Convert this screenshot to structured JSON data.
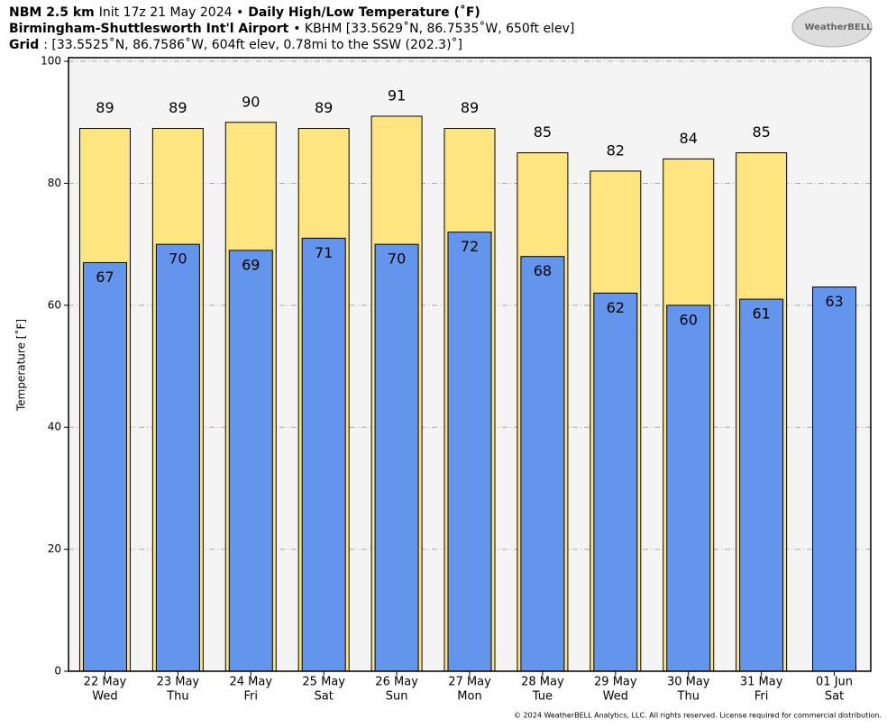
{
  "chart_data": {
    "type": "bar",
    "title_lines": [
      [
        {
          "text": "NBM 2.5 km",
          "bold": true
        },
        {
          "text": "Init 17z 21 May 2024 •",
          "bold": false
        },
        {
          "text": "Daily High/Low Temperature (˚F)",
          "bold": true
        }
      ],
      [
        {
          "text": "Birmingham-Shuttlesworth Int'l Airport",
          "bold": true
        },
        {
          "text": "• KBHM [33.5629˚N, 86.7535˚W, 650ft elev]",
          "bold": false
        }
      ],
      [
        {
          "text": "Grid",
          "bold": true
        },
        {
          "text": ": [33.5525˚N, 86.7586˚W, 604ft elev, 0.78mi to the SSW (202.3)˚]",
          "bold": false
        }
      ]
    ],
    "logo": "WeatherBELL",
    "y_label": "Temperature [˚F]",
    "footer": "© 2024 WeatherBELL Analytics, LLC. All rights reserved. License required for commercial distribution.",
    "categories": [
      "22 May",
      "23 May",
      "24 May",
      "25 May",
      "26 May",
      "27 May",
      "28 May",
      "29 May",
      "30 May",
      "31 May",
      "01 Jun"
    ],
    "weekdays": [
      "Wed",
      "Thu",
      "Fri",
      "Sat",
      "Sun",
      "Mon",
      "Tue",
      "Wed",
      "Thu",
      "Fri",
      "Sat"
    ],
    "series": [
      {
        "name": "High",
        "color": "#ffe57f",
        "values": [
          89,
          89,
          90,
          89,
          91,
          89,
          85,
          82,
          84,
          85,
          null
        ]
      },
      {
        "name": "Low",
        "color": "#6495ed",
        "values": [
          67,
          70,
          69,
          71,
          70,
          72,
          68,
          62,
          60,
          61,
          63
        ]
      }
    ],
    "ylim": [
      0,
      100.6
    ],
    "yticks": [
      0,
      20,
      40,
      60,
      80,
      100
    ],
    "grid": true
  }
}
